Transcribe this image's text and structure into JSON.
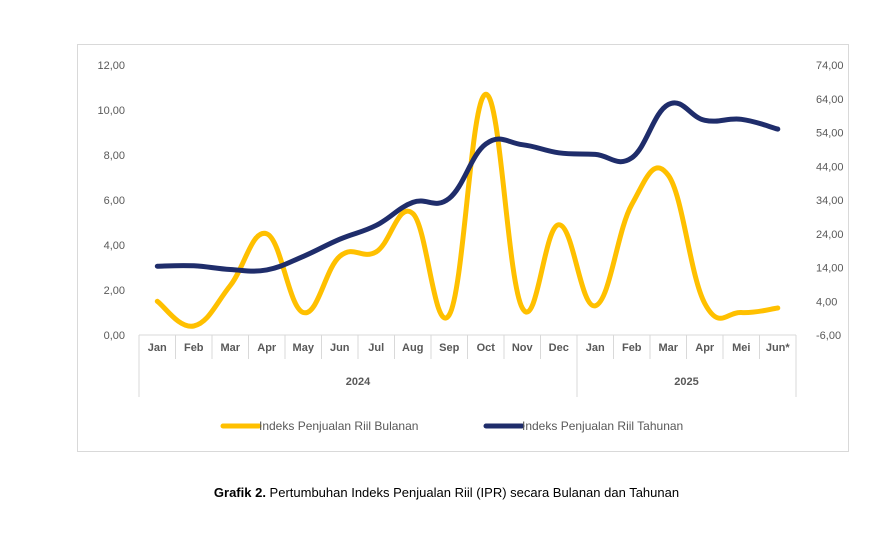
{
  "caption": {
    "label": "Grafik 2.",
    "text": " Pertumbuhan Indeks Penjualan Riil (IPR) secara Bulanan dan Tahunan"
  },
  "chart_data": {
    "type": "line",
    "categories": [
      "Jan",
      "Feb",
      "Mar",
      "Apr",
      "May",
      "Jun",
      "Jul",
      "Aug",
      "Sep",
      "Oct",
      "Nov",
      "Dec",
      "Jan",
      "Feb",
      "Mar",
      "Apr",
      "Mei",
      "Jun*"
    ],
    "groups": [
      {
        "label": "2024",
        "from": 0,
        "to": 11
      },
      {
        "label": "2025",
        "from": 12,
        "to": 17
      }
    ],
    "y_left": {
      "min": 0,
      "max": 12,
      "step": 2,
      "ticks": [
        "0,00",
        "2,00",
        "4,00",
        "6,00",
        "8,00",
        "10,00",
        "12,00"
      ]
    },
    "y_right": {
      "min": -6,
      "max": 74,
      "step": 10,
      "ticks": [
        "-6,00",
        "4,00",
        "14,00",
        "24,00",
        "34,00",
        "44,00",
        "54,00",
        "64,00",
        "74,00"
      ]
    },
    "series": [
      {
        "name": "Indeks Penjualan Riil Bulanan",
        "axis": "left",
        "color": "#FFC000",
        "values": [
          1.5,
          0.4,
          2.2,
          4.5,
          1.0,
          3.5,
          3.7,
          5.4,
          0.9,
          10.7,
          1.2,
          4.9,
          1.3,
          5.8,
          7.1,
          1.4,
          1.0,
          1.2
        ]
      },
      {
        "name": "Indeks Penjualan Riil Tahunan",
        "axis": "right",
        "color": "#1F2D6B",
        "values": [
          14.4,
          14.5,
          13.4,
          13.3,
          17.3,
          22.4,
          26.5,
          33.3,
          34.5,
          50.6,
          50.4,
          48.0,
          47.5,
          46.5,
          62.3,
          57.6,
          57.9,
          55.0
        ]
      }
    ],
    "legend_position": "bottom"
  }
}
